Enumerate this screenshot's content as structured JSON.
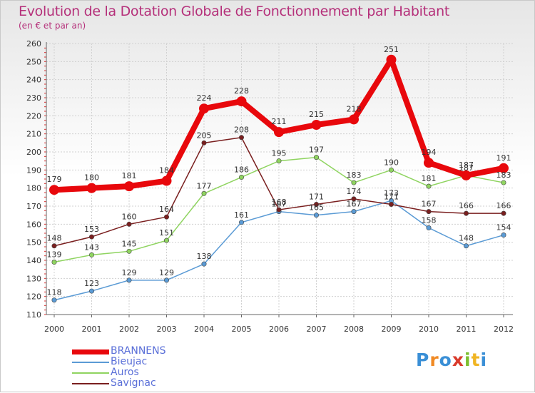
{
  "title": "Evolution de la Dotation Globale de Fonctionnement par Habitant",
  "subtitle": "(en € et par an)",
  "logo": {
    "letters": [
      "P",
      "r",
      "o",
      "x",
      "i",
      "t",
      "i"
    ],
    "colors": [
      "#3a8fd6",
      "#f08a24",
      "#3a8fd6",
      "#d93a2b",
      "#7cbf2f",
      "#f0b524",
      "#3a8fd6"
    ]
  },
  "chart_data": {
    "type": "line",
    "title": "Evolution de la Dotation Globale de Fonctionnement par Habitant",
    "ylabel": "(en € et par an)",
    "x": [
      "2000",
      "2001",
      "2002",
      "2003",
      "2004",
      "2005",
      "2006",
      "2007",
      "2008",
      "2009",
      "2010",
      "2011",
      "2012"
    ],
    "ylim": [
      110,
      260
    ],
    "yticks": [
      "110",
      "120",
      "130",
      "140",
      "150",
      "160",
      "170",
      "180",
      "190",
      "200",
      "210",
      "220",
      "230",
      "240",
      "250",
      "260"
    ],
    "series": [
      {
        "name": "BRANNENS",
        "color": "#e8080c",
        "values": [
          179,
          180,
          181,
          184,
          224,
          228,
          211,
          215,
          218,
          251,
          194,
          187,
          191
        ]
      },
      {
        "name": "Bieujac",
        "color": "#5b9bd5",
        "values": [
          118,
          123,
          129,
          129,
          138,
          161,
          167,
          165,
          167,
          173,
          158,
          148,
          154
        ]
      },
      {
        "name": "Auros",
        "color": "#8fd460",
        "values": [
          139,
          143,
          145,
          151,
          177,
          186,
          195,
          197,
          183,
          190,
          181,
          187,
          183
        ]
      },
      {
        "name": "Savignac",
        "color": "#7a1f1f",
        "values": [
          148,
          153,
          160,
          164,
          205,
          208,
          168,
          171,
          174,
          171,
          167,
          166,
          166
        ]
      }
    ]
  }
}
